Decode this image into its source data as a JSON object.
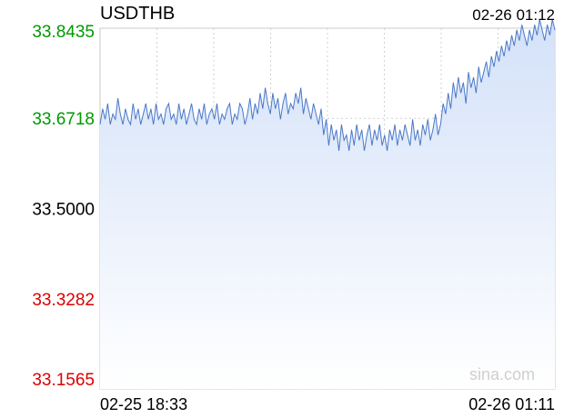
{
  "chart_data": {
    "type": "area",
    "title": "USDTHB",
    "timestamp": "02-26 01:12",
    "y_ticks": [
      "33.8435",
      "33.6718",
      "33.5000",
      "33.3282",
      "33.1565"
    ],
    "y_tick_values": [
      33.8435,
      33.6718,
      33.5,
      33.3282,
      33.1565
    ],
    "ylim": [
      33.1565,
      33.8435
    ],
    "reference_value": 33.5,
    "x_ticks": [
      "02-25 18:33",
      "02-26 01:11"
    ],
    "x_range": [
      "02-25 18:33",
      "02-26 01:11"
    ],
    "watermark": "sina.com",
    "grid": true,
    "colors": {
      "line": "#4a78c8",
      "fill_top": "#d3e1f8",
      "fill_bottom": "#ffffff",
      "up": "#009900",
      "neutral": "#000000",
      "down": "#dd0000",
      "grid": "#d0d0d0",
      "reference": "#9090b0"
    },
    "series": [
      {
        "values": [
          33.66,
          33.69,
          33.67,
          33.7,
          33.66,
          33.68,
          33.67,
          33.71,
          33.68,
          33.66,
          33.69,
          33.67,
          33.66,
          33.7,
          33.67,
          33.69,
          33.66,
          33.68,
          33.7,
          33.67,
          33.69,
          33.66,
          33.7,
          33.67,
          33.68,
          33.66,
          33.69,
          33.7,
          33.67,
          33.68,
          33.66,
          33.7,
          33.67,
          33.69,
          33.66,
          33.68,
          33.7,
          33.67,
          33.66,
          33.69,
          33.67,
          33.7,
          33.66,
          33.68,
          33.69,
          33.67,
          33.7,
          33.66,
          33.68,
          33.67,
          33.69,
          33.7,
          33.66,
          33.68,
          33.67,
          33.7,
          33.69,
          33.66,
          33.68,
          33.71,
          33.67,
          33.7,
          33.68,
          33.72,
          33.69,
          33.73,
          33.7,
          33.68,
          33.72,
          33.69,
          33.71,
          33.67,
          33.7,
          33.72,
          33.68,
          33.7,
          33.69,
          33.72,
          33.7,
          33.73,
          33.68,
          33.71,
          33.69,
          33.67,
          33.7,
          33.68,
          33.66,
          33.69,
          33.64,
          33.67,
          33.62,
          33.66,
          33.63,
          33.65,
          33.61,
          33.66,
          33.63,
          33.64,
          33.61,
          33.65,
          33.62,
          33.66,
          33.63,
          33.65,
          33.61,
          33.64,
          33.66,
          33.62,
          33.65,
          33.63,
          33.66,
          33.62,
          33.64,
          33.61,
          33.65,
          33.63,
          33.66,
          33.62,
          33.65,
          33.63,
          33.66,
          33.64,
          33.62,
          33.67,
          33.63,
          33.65,
          33.62,
          33.66,
          33.64,
          33.67,
          33.63,
          33.65,
          33.68,
          33.64,
          33.66,
          33.7,
          33.68,
          33.72,
          33.69,
          33.74,
          33.71,
          33.75,
          33.72,
          33.74,
          33.7,
          33.76,
          33.73,
          33.75,
          33.72,
          33.77,
          33.74,
          33.76,
          33.78,
          33.75,
          33.79,
          33.77,
          33.8,
          33.78,
          33.81,
          33.79,
          33.82,
          33.8,
          33.83,
          33.81,
          33.84,
          33.82,
          33.85,
          33.83,
          33.81,
          33.84,
          33.82,
          33.85,
          33.83,
          33.86,
          33.84,
          33.82,
          33.85,
          33.83,
          33.86,
          33.84
        ]
      }
    ]
  }
}
